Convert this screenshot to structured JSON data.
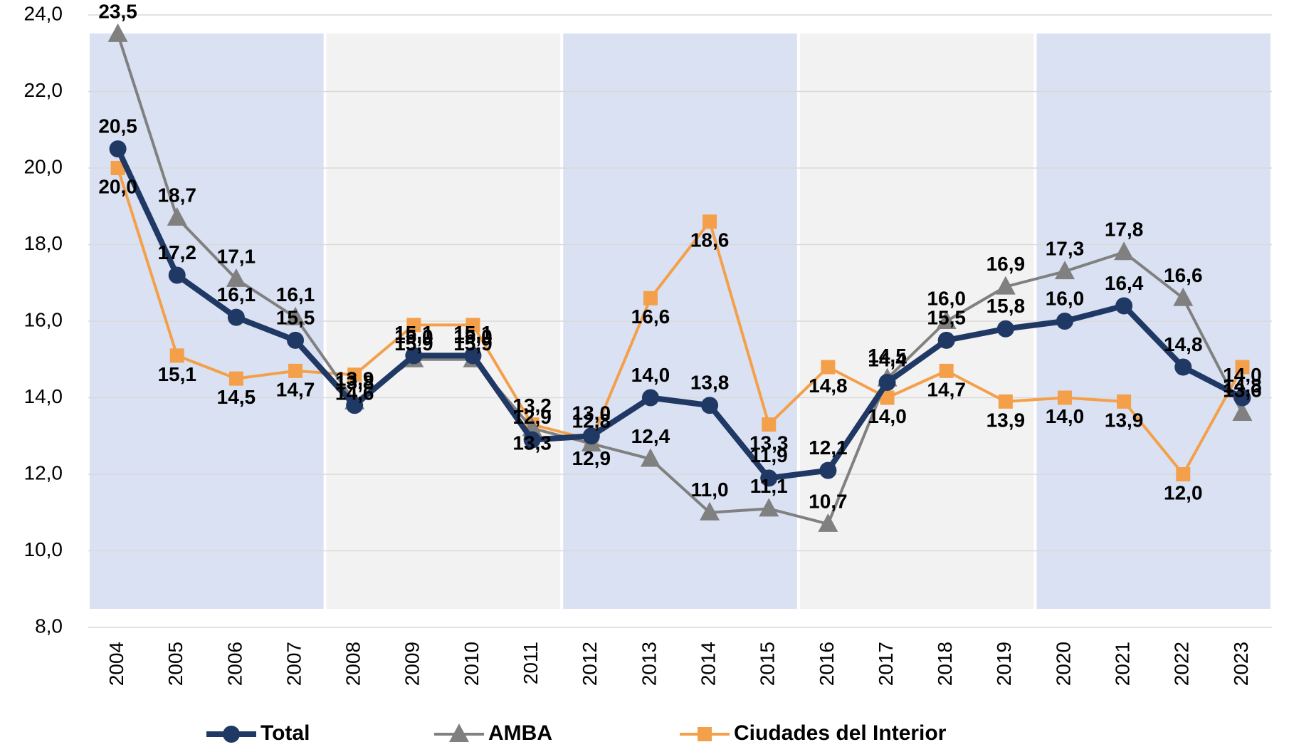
{
  "chart_data": {
    "type": "line",
    "categories": [
      "2004",
      "2005",
      "2006",
      "2007",
      "2008",
      "2009",
      "2010",
      "2011",
      "2012",
      "2013",
      "2014",
      "2015",
      "2016",
      "2017",
      "2018",
      "2019",
      "2020",
      "2021",
      "2022",
      "2023"
    ],
    "series": [
      {
        "name": "Total",
        "color": "#203864",
        "marker": "circle",
        "values": [
          20.5,
          17.2,
          16.1,
          15.5,
          13.8,
          15.1,
          15.1,
          12.9,
          13.0,
          14.0,
          13.8,
          11.9,
          12.1,
          14.4,
          15.5,
          15.8,
          16.0,
          16.4,
          14.8,
          14.0
        ],
        "value_labels": [
          "20,5",
          "17,2",
          "16,1",
          "15,5",
          "13,8",
          "15,1",
          "15,1",
          "12,9",
          "13,0",
          "14,0",
          "13,8",
          "11,9",
          "12,1",
          "14,4",
          "15,5",
          "15,8",
          "16,0",
          "16,4",
          "14,8",
          "14,0"
        ]
      },
      {
        "name": "AMBA",
        "color": "#808080",
        "marker": "triangle",
        "values": [
          23.5,
          18.7,
          17.1,
          16.1,
          13.9,
          15.0,
          15.0,
          13.2,
          12.8,
          12.4,
          11.0,
          11.1,
          10.7,
          14.5,
          16.0,
          16.9,
          17.3,
          17.8,
          16.6,
          13.6
        ],
        "value_labels": [
          "23,5",
          "18,7",
          "17,1",
          "16,1",
          "13,9",
          "15,0",
          "15,0",
          "13,2",
          "12,8",
          "12,4",
          "11,0",
          "11,1",
          "10,7",
          "14,5",
          "16,0",
          "16,9",
          "17,3",
          "17,8",
          "16,6",
          "13,6"
        ]
      },
      {
        "name": "Ciudades del Interior",
        "color": "#f4a04a",
        "marker": "square",
        "values": [
          20.0,
          15.1,
          14.5,
          14.7,
          14.6,
          15.9,
          15.9,
          13.3,
          12.9,
          16.6,
          18.6,
          13.3,
          14.8,
          14.0,
          14.7,
          13.9,
          14.0,
          13.9,
          12.0,
          14.8
        ],
        "value_labels": [
          "20,0",
          "15,1",
          "14,5",
          "14,7",
          "14,6",
          "15,9",
          "15,9",
          "13,3",
          "12,9",
          "16,6",
          "18,6",
          "13,3",
          "14,8",
          "14,0",
          "14,7",
          "13,9",
          "14,0",
          "13,9",
          "12,0",
          "14,8"
        ]
      }
    ],
    "ylim": [
      8,
      24
    ],
    "yticks": [
      {
        "value": 8,
        "label": "8,0"
      },
      {
        "value": 10,
        "label": "10,0"
      },
      {
        "value": 12,
        "label": "12,0"
      },
      {
        "value": 14,
        "label": "14,0"
      },
      {
        "value": 16,
        "label": "16,0"
      },
      {
        "value": 18,
        "label": "18,0"
      },
      {
        "value": 20,
        "label": "20,0"
      },
      {
        "value": 22,
        "label": "22,0"
      },
      {
        "value": 24,
        "label": "24,0"
      }
    ],
    "grid": true,
    "legend": "bottom"
  }
}
